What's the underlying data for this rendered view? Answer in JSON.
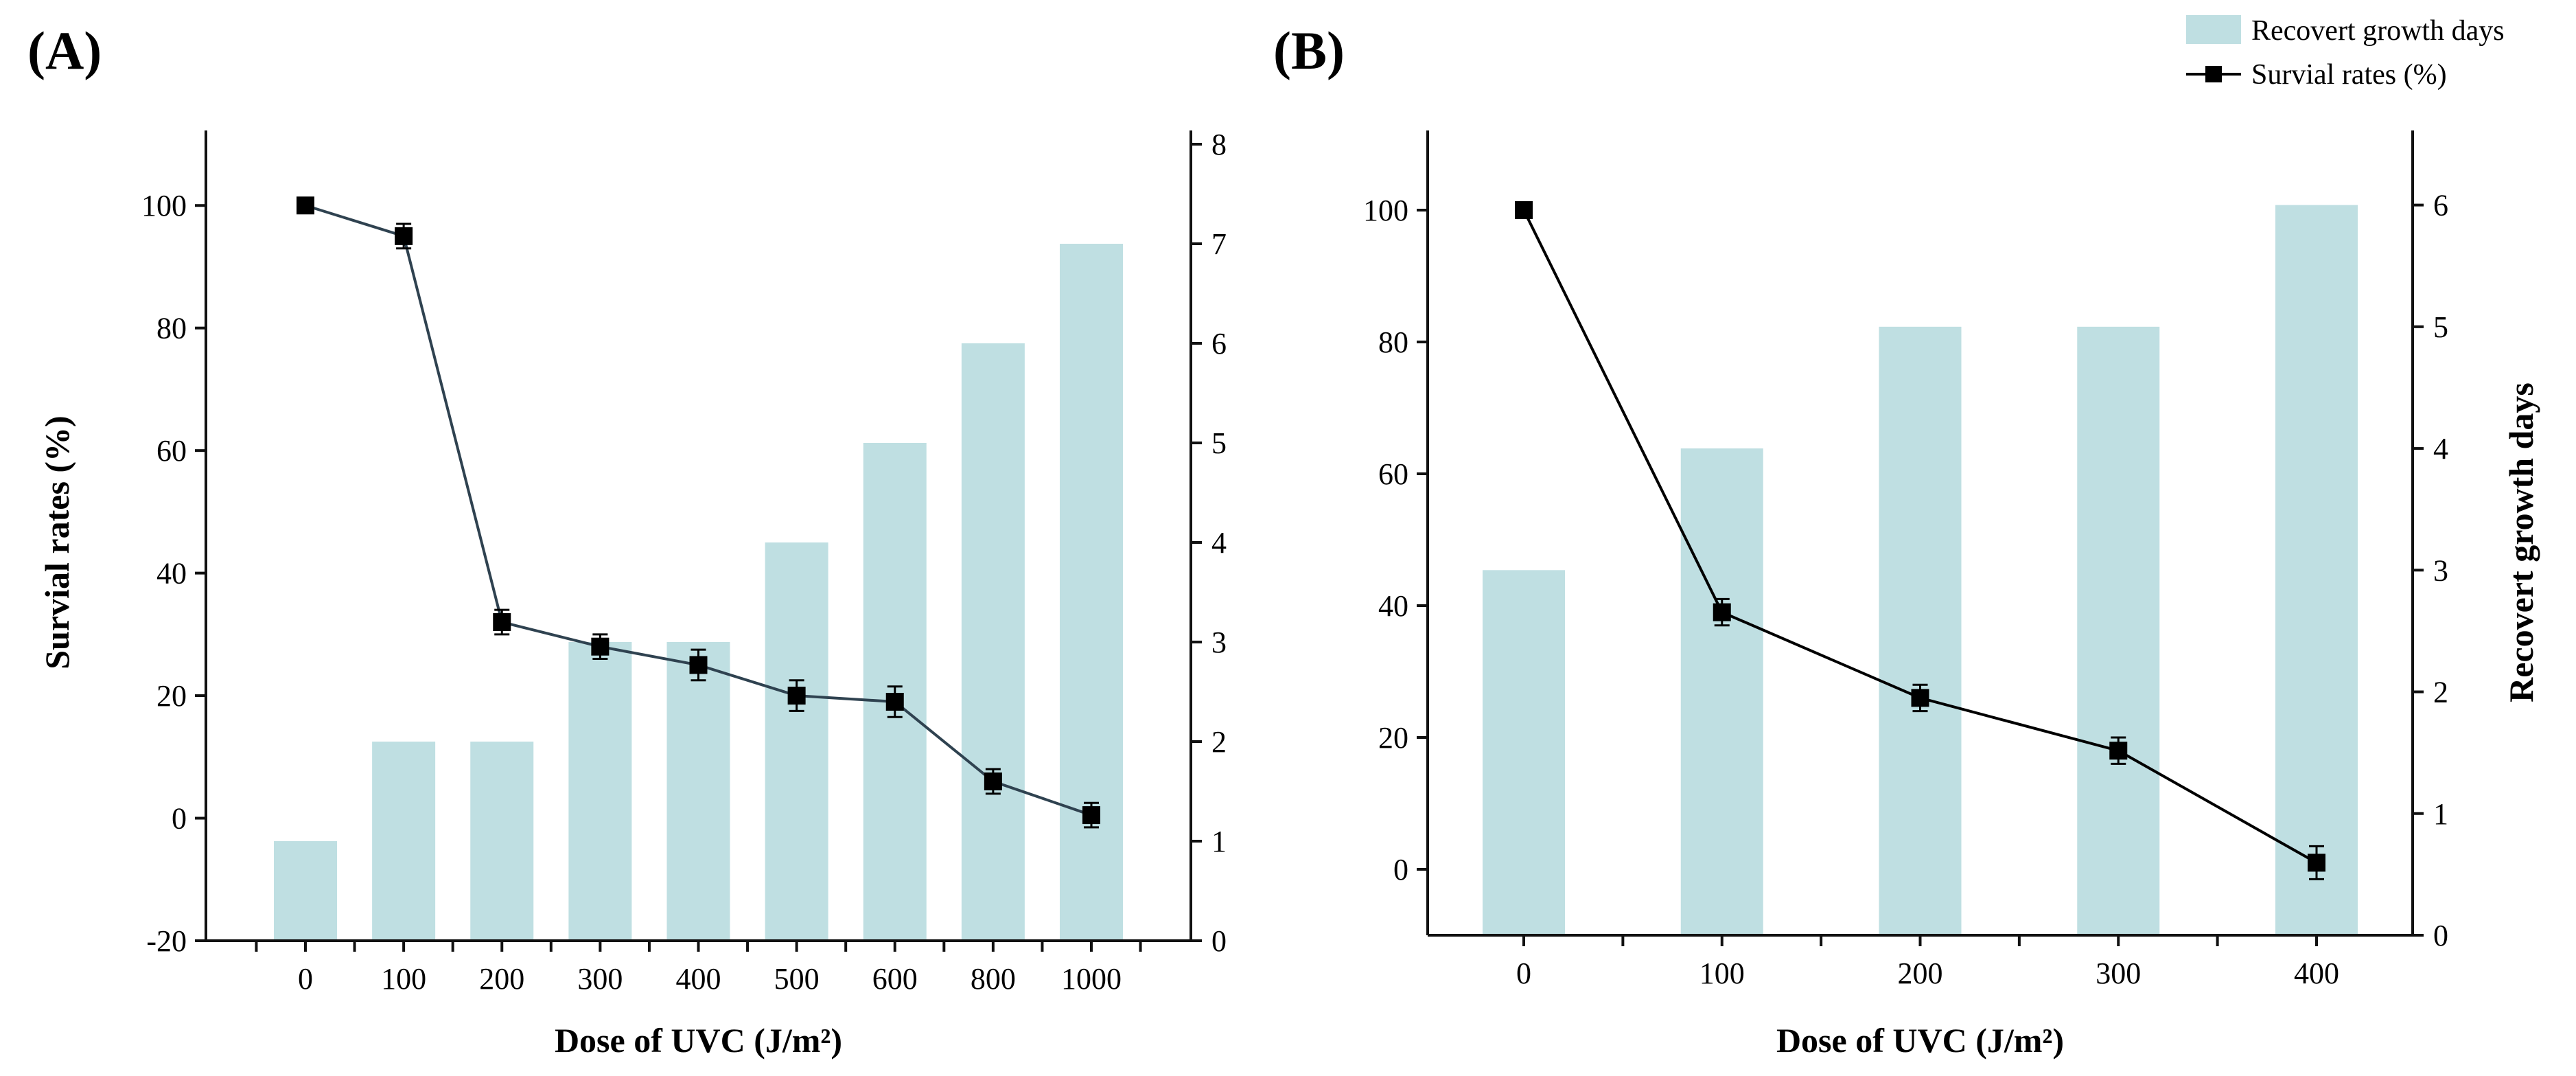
{
  "legend": {
    "bar_label": "Recovert growth days",
    "line_label": "Survial rates (%)"
  },
  "colors": {
    "bar": "#bfdfe2",
    "line_a": "#2f4250",
    "line_b": "#000000",
    "marker": "#000000",
    "axis": "#111111"
  },
  "chart_data": [
    {
      "panel": "(A)",
      "type": "bar+line",
      "xlabel": "Dose of UVC (J/m²)",
      "ylabel": "Survial rates (%)",
      "y2label": "",
      "categories": [
        "0",
        "100",
        "200",
        "300",
        "400",
        "500",
        "600",
        "800",
        "1000"
      ],
      "ylim": [
        -20,
        110
      ],
      "yticks": [
        -20,
        0,
        20,
        40,
        60,
        80,
        100
      ],
      "y2lim": [
        0,
        8
      ],
      "y2ticks": [
        0,
        1,
        2,
        3,
        4,
        5,
        6,
        7,
        8
      ],
      "series": [
        {
          "name": "Recovert growth days",
          "type": "bar",
          "axis": "right",
          "values": [
            1,
            2,
            2,
            3,
            3,
            4,
            5,
            6,
            7
          ]
        },
        {
          "name": "Survial rates (%)",
          "type": "line",
          "axis": "left",
          "values": [
            100,
            95,
            32,
            28,
            25,
            20,
            19,
            6,
            0.5
          ],
          "errors": [
            0,
            2,
            2,
            2,
            2.5,
            2.5,
            2.5,
            2,
            2
          ]
        }
      ]
    },
    {
      "panel": "(B)",
      "type": "bar+line",
      "xlabel": "Dose of UVC (J/m²)",
      "ylabel": "",
      "y2label": "Recovert growth days",
      "categories": [
        "0",
        "100",
        "200",
        "300",
        "400"
      ],
      "ylim": [
        -10,
        110
      ],
      "yticks": [
        0,
        20,
        40,
        60,
        80,
        100
      ],
      "y2lim": [
        0,
        6.5
      ],
      "y2ticks": [
        0,
        1,
        2,
        3,
        4,
        5,
        6
      ],
      "series": [
        {
          "name": "Recovert growth days",
          "type": "bar",
          "axis": "right",
          "values": [
            3,
            4,
            5,
            5,
            6
          ]
        },
        {
          "name": "Survial rates (%)",
          "type": "line",
          "axis": "left",
          "values": [
            100,
            39,
            26,
            18,
            1
          ],
          "errors": [
            0,
            2,
            2,
            2,
            2.5
          ]
        }
      ]
    }
  ]
}
